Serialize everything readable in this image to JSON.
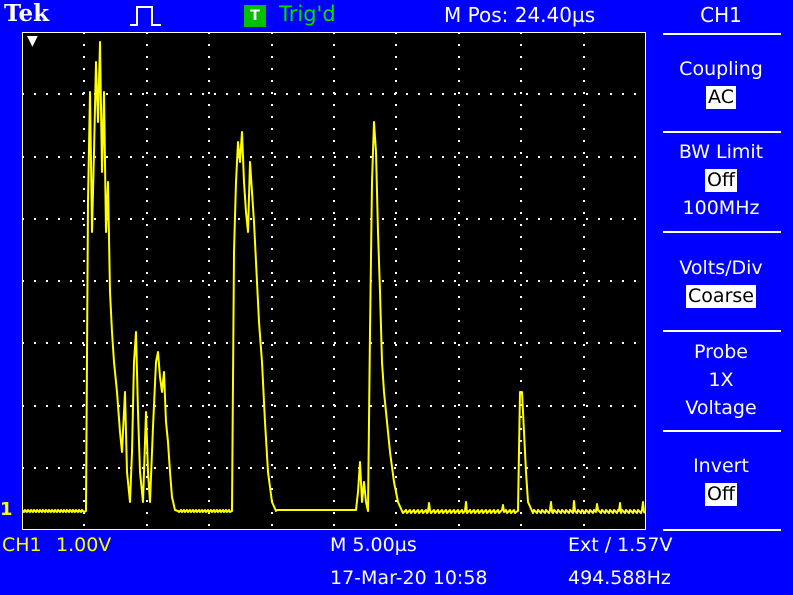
{
  "header": {
    "brand": "Tek",
    "trigger_icon": "T",
    "trigger_status": "Trig'd",
    "m_pos": "M Pos: 24.40µs"
  },
  "menu": {
    "title": "CH1",
    "items": [
      {
        "label": "Coupling",
        "value": "AC"
      },
      {
        "label": "BW Limit",
        "value": "Off",
        "sub": "100MHz"
      },
      {
        "label": "Volts/Div",
        "value": "Coarse"
      },
      {
        "label": "Probe",
        "line2": "1X",
        "line3": "Voltage"
      },
      {
        "label": "Invert",
        "value": "Off"
      }
    ]
  },
  "status": {
    "ch1_label": "CH1",
    "ch1_scale": "1.00V",
    "timebase": "M 5.00µs",
    "trigger": "Ext ∕ 1.57V",
    "datetime": "17-Mar-20 10:58",
    "frequency": "494.588Hz"
  },
  "screen": {
    "channel_marker": "1",
    "trace_color": "#ffff00",
    "grid_color": "#ffffff",
    "background": "#000000"
  }
}
